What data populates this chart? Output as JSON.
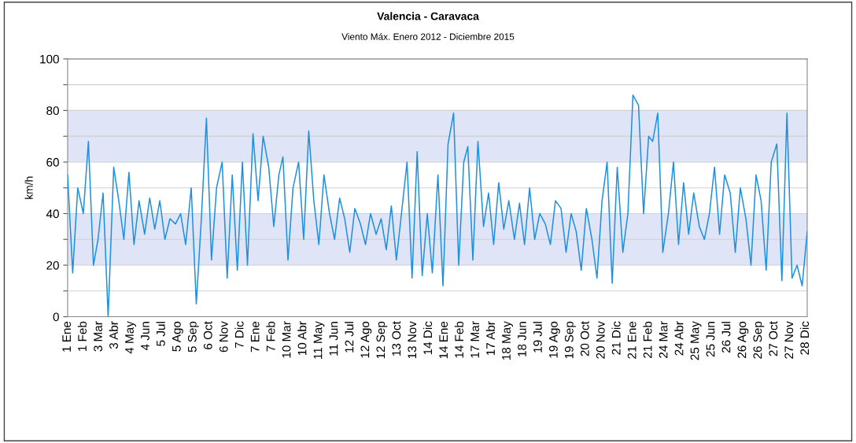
{
  "chart_data": {
    "type": "line",
    "title": "Valencia - Caravaca",
    "subtitle": "Viento Máx. Enero 2012 - Diciembre 2015",
    "ylabel": "km/h",
    "x": [
      "2012-01-01",
      "2012-01-11",
      "2012-01-21",
      "2012-02-01",
      "2012-02-11",
      "2012-02-21",
      "2012-03-01",
      "2012-03-11",
      "2012-03-21",
      "2012-04-01",
      "2012-04-11",
      "2012-04-21",
      "2012-05-01",
      "2012-05-11",
      "2012-05-21",
      "2012-06-01",
      "2012-06-11",
      "2012-06-21",
      "2012-07-01",
      "2012-07-11",
      "2012-07-21",
      "2012-08-01",
      "2012-08-11",
      "2012-08-21",
      "2012-09-01",
      "2012-09-11",
      "2012-09-21",
      "2012-10-01",
      "2012-10-11",
      "2012-10-21",
      "2012-11-01",
      "2012-11-11",
      "2012-11-21",
      "2012-12-01",
      "2012-12-11",
      "2012-12-21",
      "2013-01-01",
      "2013-01-11",
      "2013-01-21",
      "2013-02-01",
      "2013-02-11",
      "2013-02-21",
      "2013-03-01",
      "2013-03-11",
      "2013-03-21",
      "2013-04-01",
      "2013-04-11",
      "2013-04-21",
      "2013-05-01",
      "2013-05-11",
      "2013-05-21",
      "2013-06-01",
      "2013-06-11",
      "2013-06-21",
      "2013-07-01",
      "2013-07-11",
      "2013-07-21",
      "2013-08-01",
      "2013-08-11",
      "2013-08-21",
      "2013-09-01",
      "2013-09-11",
      "2013-09-21",
      "2013-10-01",
      "2013-10-11",
      "2013-10-21",
      "2013-11-01",
      "2013-11-11",
      "2013-11-21",
      "2013-12-01",
      "2013-12-11",
      "2013-12-21",
      "2014-01-01",
      "2014-01-11",
      "2014-01-21",
      "2014-02-01",
      "2014-02-11",
      "2014-02-21",
      "2014-03-01",
      "2014-03-11",
      "2014-03-21",
      "2014-04-01",
      "2014-04-11",
      "2014-04-21",
      "2014-05-01",
      "2014-05-11",
      "2014-05-21",
      "2014-06-01",
      "2014-06-11",
      "2014-06-21",
      "2014-07-01",
      "2014-07-11",
      "2014-07-21",
      "2014-08-01",
      "2014-08-11",
      "2014-08-21",
      "2014-09-01",
      "2014-09-11",
      "2014-09-21",
      "2014-10-01",
      "2014-10-11",
      "2014-10-21",
      "2014-11-01",
      "2014-11-11",
      "2014-11-21",
      "2014-12-01",
      "2014-12-11",
      "2014-12-21",
      "2015-01-01",
      "2015-01-11",
      "2015-01-21",
      "2015-02-01",
      "2015-02-11",
      "2015-02-21",
      "2015-03-01",
      "2015-03-11",
      "2015-03-21",
      "2015-04-01",
      "2015-04-11",
      "2015-04-21",
      "2015-05-01",
      "2015-05-11",
      "2015-05-21",
      "2015-06-01",
      "2015-06-11",
      "2015-06-21",
      "2015-07-01",
      "2015-07-11",
      "2015-07-21",
      "2015-08-01",
      "2015-08-11",
      "2015-08-21",
      "2015-09-01",
      "2015-09-11",
      "2015-09-21",
      "2015-10-01",
      "2015-10-11",
      "2015-10-21",
      "2015-11-01",
      "2015-11-11",
      "2015-11-21",
      "2015-12-01",
      "2015-12-11",
      "2015-12-21",
      "2015-12-31"
    ],
    "series": [
      {
        "color": "#1e90e0",
        "values": [
          55,
          17,
          50,
          40,
          68,
          20,
          30,
          48,
          0,
          58,
          45,
          30,
          56,
          28,
          45,
          32,
          46,
          34,
          45,
          30,
          38,
          36,
          40,
          28,
          50,
          5,
          38,
          77,
          22,
          50,
          60,
          15,
          55,
          18,
          60,
          20,
          71,
          45,
          70,
          58,
          35,
          55,
          62,
          22,
          50,
          60,
          30,
          72,
          45,
          28,
          55,
          40,
          30,
          46,
          38,
          25,
          42,
          36,
          28,
          40,
          32,
          38,
          26,
          43,
          22,
          40,
          60,
          15,
          64,
          16,
          40,
          17,
          55,
          12,
          67,
          79,
          20,
          60,
          66,
          22,
          68,
          35,
          48,
          28,
          52,
          34,
          45,
          30,
          44,
          28,
          50,
          30,
          40,
          36,
          28,
          45,
          42,
          25,
          40,
          33,
          18,
          42,
          30,
          15,
          45,
          60,
          13,
          58,
          25,
          40,
          86,
          82,
          40,
          70,
          68,
          79,
          25,
          40,
          60,
          28,
          52,
          32,
          48,
          35,
          30,
          40,
          58,
          32,
          55,
          48,
          25,
          50,
          38,
          20,
          55,
          45,
          18,
          60,
          67,
          14,
          79,
          15,
          20,
          12,
          33
        ]
      }
    ],
    "xlim": [
      "2012-01-01",
      "2015-12-31"
    ],
    "xticks": [
      {
        "value": "2012-01-01",
        "label": "1 Ene"
      },
      {
        "value": "2012-02-01",
        "label": "1 Feb"
      },
      {
        "value": "2012-03-03",
        "label": "3 Mar"
      },
      {
        "value": "2012-04-03",
        "label": "3 Abr"
      },
      {
        "value": "2012-05-04",
        "label": "4 May"
      },
      {
        "value": "2012-06-04",
        "label": "4 Jun"
      },
      {
        "value": "2012-07-05",
        "label": "5 Jul"
      },
      {
        "value": "2012-08-05",
        "label": "5 Ago"
      },
      {
        "value": "2012-09-05",
        "label": "5 Sep"
      },
      {
        "value": "2012-10-06",
        "label": "6 Oct"
      },
      {
        "value": "2012-11-06",
        "label": "6 Nov"
      },
      {
        "value": "2012-12-07",
        "label": "7 Dic"
      },
      {
        "value": "2013-01-07",
        "label": "7 Ene"
      },
      {
        "value": "2013-02-07",
        "label": "7 Feb"
      },
      {
        "value": "2013-03-10",
        "label": "10 Mar"
      },
      {
        "value": "2013-04-10",
        "label": "10 Abr"
      },
      {
        "value": "2013-05-11",
        "label": "11 May"
      },
      {
        "value": "2013-06-11",
        "label": "11 Jun"
      },
      {
        "value": "2013-07-12",
        "label": "12 Jul"
      },
      {
        "value": "2013-08-12",
        "label": "12 Ago"
      },
      {
        "value": "2013-09-12",
        "label": "12 Sep"
      },
      {
        "value": "2013-10-13",
        "label": "13 Oct"
      },
      {
        "value": "2013-11-13",
        "label": "13 Nov"
      },
      {
        "value": "2013-12-14",
        "label": "14 Dic"
      },
      {
        "value": "2014-01-14",
        "label": "14 Ene"
      },
      {
        "value": "2014-02-14",
        "label": "14 Feb"
      },
      {
        "value": "2014-03-17",
        "label": "17 Mar"
      },
      {
        "value": "2014-04-17",
        "label": "17 Abr"
      },
      {
        "value": "2014-05-18",
        "label": "18 May"
      },
      {
        "value": "2014-06-18",
        "label": "18 Jun"
      },
      {
        "value": "2014-07-19",
        "label": "19 Jul"
      },
      {
        "value": "2014-08-19",
        "label": "19 Ago"
      },
      {
        "value": "2014-09-19",
        "label": "19 Sep"
      },
      {
        "value": "2014-10-20",
        "label": "20 Oct"
      },
      {
        "value": "2014-11-20",
        "label": "20 Nov"
      },
      {
        "value": "2014-12-21",
        "label": "21 Dic"
      },
      {
        "value": "2015-01-21",
        "label": "21 Ene"
      },
      {
        "value": "2015-02-21",
        "label": "21 Feb"
      },
      {
        "value": "2015-03-24",
        "label": "24 Mar"
      },
      {
        "value": "2015-04-24",
        "label": "24 Abr"
      },
      {
        "value": "2015-05-25",
        "label": "25 May"
      },
      {
        "value": "2015-06-25",
        "label": "25 Jun"
      },
      {
        "value": "2015-07-26",
        "label": "26 Jul"
      },
      {
        "value": "2015-08-26",
        "label": "26 Ago"
      },
      {
        "value": "2015-09-26",
        "label": "26 Sep"
      },
      {
        "value": "2015-10-27",
        "label": "27 Oct"
      },
      {
        "value": "2015-11-27",
        "label": "27 Nov"
      },
      {
        "value": "2015-12-28",
        "label": "28 Dic"
      }
    ],
    "ylim": [
      0,
      100
    ],
    "yticks": [
      0,
      {
        "value": 10,
        "label": null
      },
      20,
      {
        "value": 30,
        "label": null
      },
      40,
      {
        "value": 50,
        "label": null
      },
      60,
      {
        "value": 70,
        "label": null
      },
      80,
      {
        "value": 90,
        "label": null
      },
      100
    ],
    "bands": [
      {
        "axis": "y",
        "from": 20,
        "to": 40,
        "color": "#dfe5f7"
      },
      {
        "axis": "y",
        "from": 60,
        "to": 80,
        "color": "#dfe5f7"
      }
    ],
    "grid": "y",
    "marker": "none",
    "line_style": "solid"
  }
}
